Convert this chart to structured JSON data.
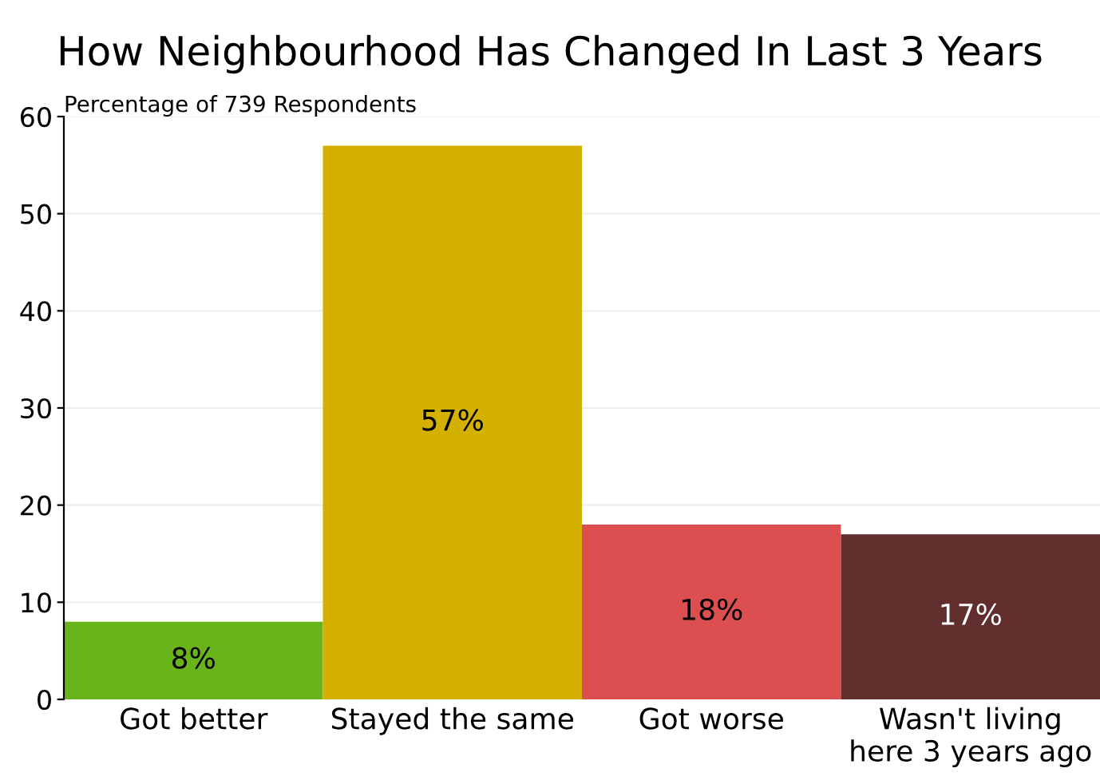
{
  "chart_data": {
    "type": "bar",
    "title": "How Neighbourhood Has Changed In Last 3 Years",
    "subtitle": "Percentage of 739 Respondents",
    "categories": [
      "Got better",
      "Stayed the same",
      "Got worse",
      "Wasn't living\nhere 3 years ago"
    ],
    "values": [
      8,
      57,
      18,
      17
    ],
    "colors": [
      "#6ab41b",
      "#d4b000",
      "#dc4f51",
      "#622d2d"
    ],
    "value_labels": [
      "8%",
      "57%",
      "18%",
      "17%"
    ],
    "ylim": [
      0,
      60
    ],
    "yticks": [
      0,
      10,
      20,
      30,
      40,
      50,
      60
    ],
    "grid": "y",
    "legend": false
  }
}
